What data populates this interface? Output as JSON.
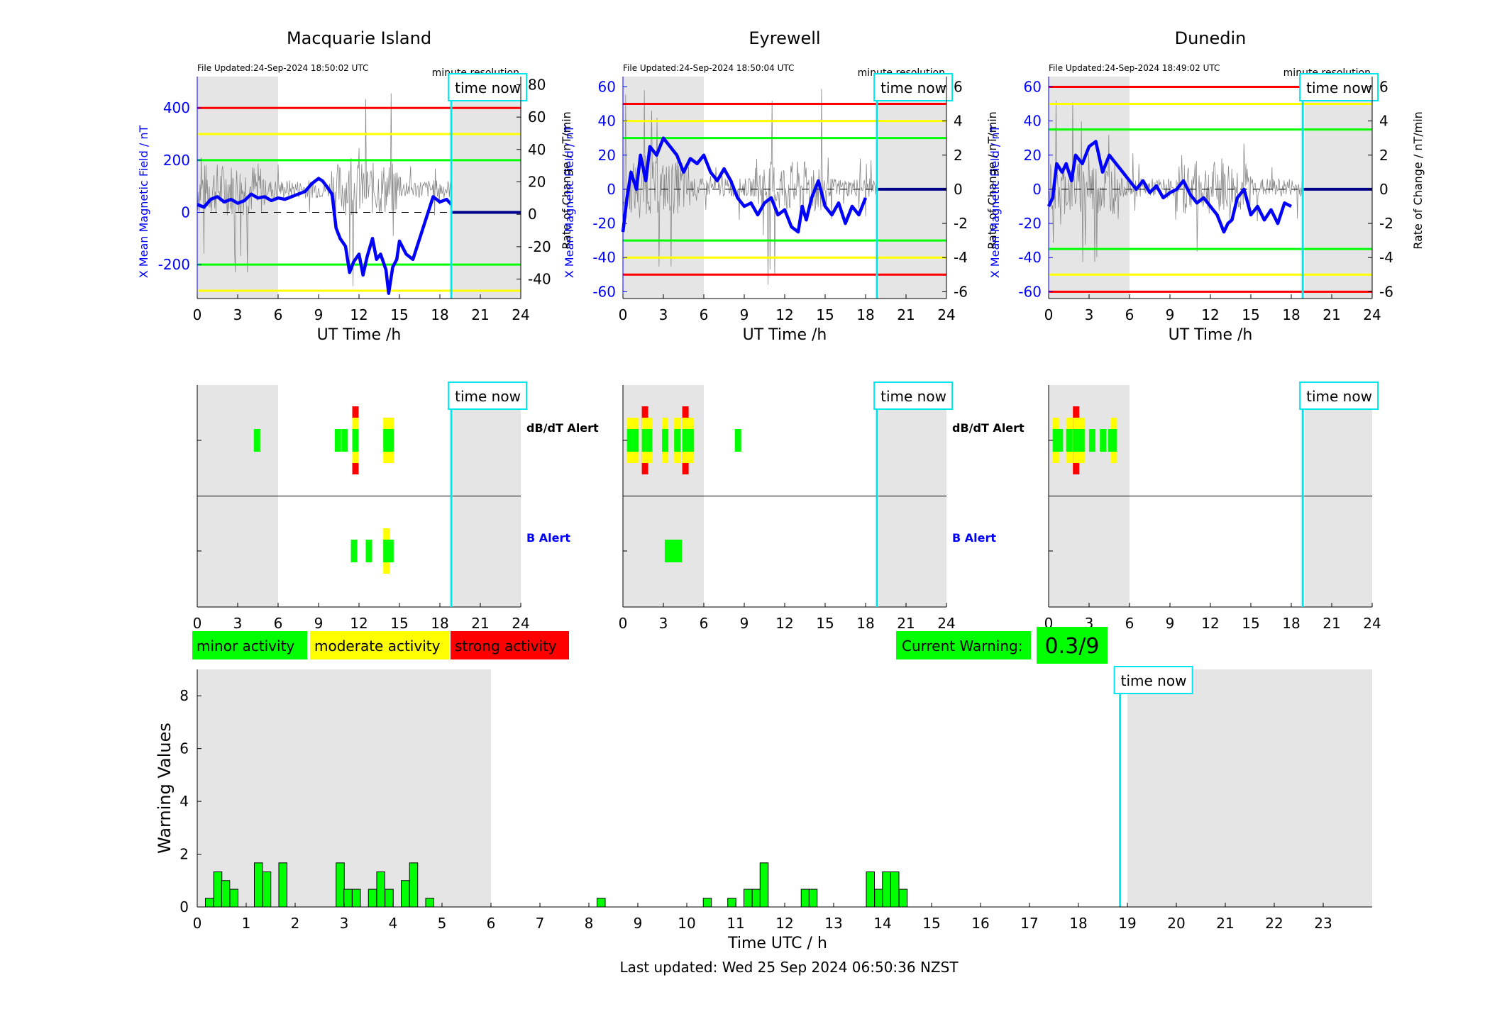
{
  "stations": [
    {
      "name": "Macquarie Island",
      "file_updated": "File Updated:24-Sep-2024 18:50:02 UTC",
      "resolution": "minute resolution",
      "left_ylabel": "X Mean Magnetic Field / nT",
      "right_ylabel": "Rate of Change / nT/min",
      "left_ylim": [
        -330,
        520
      ],
      "left_ticks": [
        -200,
        0,
        200,
        400
      ],
      "right_ticks": [
        -40,
        -20,
        0,
        20,
        40,
        60,
        80
      ],
      "thresholds": [
        {
          "value": 400,
          "color": "#ff0000"
        },
        {
          "value": 300,
          "color": "#ffff00"
        },
        {
          "value": 200,
          "color": "#00ff00"
        },
        {
          "value": -200,
          "color": "#00ff00"
        },
        {
          "value": -300,
          "color": "#ffff00"
        }
      ],
      "series_x": {
        "t": [
          0,
          0.5,
          1,
          1.5,
          2,
          2.5,
          3,
          3.5,
          4,
          4.5,
          5,
          5.5,
          6,
          6.5,
          7,
          7.5,
          8,
          8.5,
          9,
          9.3,
          9.6,
          10,
          10.3,
          10.6,
          11,
          11.3,
          11.6,
          12,
          12.3,
          12.6,
          13,
          13.3,
          13.6,
          14,
          14.2,
          14.5,
          14.8,
          15,
          15.5,
          16,
          16.5,
          17,
          17.5,
          18,
          18.5,
          18.85
        ],
        "v": [
          30,
          20,
          50,
          60,
          40,
          50,
          35,
          45,
          70,
          55,
          60,
          45,
          55,
          50,
          60,
          70,
          80,
          110,
          130,
          120,
          100,
          70,
          -60,
          -100,
          -130,
          -230,
          -190,
          -160,
          -240,
          -170,
          -100,
          -180,
          -160,
          -220,
          -310,
          -210,
          -180,
          -110,
          -160,
          -180,
          -100,
          -20,
          60,
          40,
          50,
          30
        ]
      }
    },
    {
      "name": "Eyrewell",
      "file_updated": "File Updated:24-Sep-2024 18:50:04 UTC",
      "resolution": "minute resolution",
      "left_ylabel": "X Mean Magnetic Field / nT",
      "right_ylabel": "Rate of Change / nT/min",
      "left_ylim": [
        -64,
        66
      ],
      "left_ticks": [
        -60,
        -40,
        -20,
        0,
        20,
        40,
        60
      ],
      "right_ticks": [
        -6,
        -4,
        -2,
        0,
        2,
        4,
        6
      ],
      "thresholds": [
        {
          "value": 50,
          "color": "#ff0000"
        },
        {
          "value": 40,
          "color": "#ffff00"
        },
        {
          "value": 30,
          "color": "#00ff00"
        },
        {
          "value": -30,
          "color": "#00ff00"
        },
        {
          "value": -40,
          "color": "#ffff00"
        },
        {
          "value": -50,
          "color": "#ff0000"
        }
      ],
      "series_x": {
        "t": [
          0,
          0.3,
          0.6,
          1,
          1.3,
          1.7,
          2,
          2.5,
          3,
          3.5,
          4,
          4.5,
          5,
          5.5,
          6,
          6.5,
          7,
          7.5,
          8,
          8.5,
          9,
          9.5,
          10,
          10.5,
          11,
          11.5,
          12,
          12.5,
          13,
          13.3,
          13.6,
          14,
          14.5,
          15,
          15.5,
          16,
          16.5,
          17,
          17.5,
          18
        ],
        "v": [
          -25,
          -5,
          10,
          0,
          20,
          5,
          25,
          20,
          30,
          25,
          20,
          10,
          18,
          15,
          20,
          10,
          5,
          12,
          5,
          -5,
          -10,
          -8,
          -15,
          -8,
          -5,
          -15,
          -12,
          -22,
          -25,
          -10,
          -18,
          -5,
          5,
          -10,
          -15,
          -8,
          -20,
          -10,
          -15,
          -5
        ]
      }
    },
    {
      "name": "Dunedin",
      "file_updated": "File Updated:24-Sep-2024 18:49:02 UTC",
      "resolution": "minute resolution",
      "left_ylabel": "X Mean Magnetic Field / nT",
      "right_ylabel": "Rate of Change / nT/min",
      "left_ylim": [
        -64,
        66
      ],
      "left_ticks": [
        -60,
        -40,
        -20,
        0,
        20,
        40,
        60
      ],
      "right_ticks": [
        -6,
        -4,
        -2,
        0,
        2,
        4,
        6
      ],
      "thresholds": [
        {
          "value": 60,
          "color": "#ff0000"
        },
        {
          "value": 50,
          "color": "#ffff00"
        },
        {
          "value": 35,
          "color": "#00ff00"
        },
        {
          "value": -35,
          "color": "#00ff00"
        },
        {
          "value": -50,
          "color": "#ffff00"
        },
        {
          "value": -60,
          "color": "#ff0000"
        }
      ],
      "series_x": {
        "t": [
          0,
          0.3,
          0.6,
          1,
          1.3,
          1.7,
          2,
          2.5,
          3,
          3.5,
          4,
          4.5,
          5,
          5.5,
          6,
          6.5,
          7,
          7.5,
          8,
          8.5,
          9,
          9.5,
          10,
          10.5,
          11,
          11.5,
          12,
          12.5,
          13,
          13.3,
          13.6,
          14,
          14.5,
          15,
          15.5,
          16,
          16.5,
          17,
          17.5,
          18
        ],
        "v": [
          -10,
          -5,
          15,
          10,
          15,
          5,
          20,
          15,
          25,
          28,
          10,
          20,
          15,
          10,
          5,
          0,
          5,
          -2,
          2,
          -5,
          -2,
          0,
          5,
          -3,
          -8,
          -5,
          -10,
          -15,
          -25,
          -20,
          -18,
          -5,
          0,
          -15,
          -10,
          -18,
          -12,
          -20,
          -8,
          -10
        ]
      }
    }
  ],
  "common": {
    "xlabel": "UT Time /h",
    "xticks": [
      0,
      3,
      6,
      9,
      12,
      15,
      18,
      21,
      24
    ],
    "time_now": 18.85,
    "time_now_label": "time now",
    "shade_ranges": [
      [
        0,
        6
      ],
      [
        19,
        24
      ]
    ],
    "alert_labels": {
      "dbdt": "dB/dT Alert",
      "b": "B Alert"
    },
    "colors": {
      "minor": "#00ff00",
      "moderate": "#ffff00",
      "strong": "#ff0000",
      "time_now": "#00e5ee",
      "shade": "#e5e5e5",
      "series": "#0000ff",
      "label_blue": "#0000ff"
    }
  },
  "alerts": [
    {
      "dbdt": [
        {
          "t": 4.2,
          "level": "minor"
        },
        {
          "t": 10.2,
          "level": "minor"
        },
        {
          "t": 10.7,
          "level": "minor"
        },
        {
          "t": 11.5,
          "level": "strong"
        },
        {
          "t": 13.8,
          "level": "moderate"
        },
        {
          "t": 14.1,
          "level": "moderate"
        }
      ],
      "b": [
        {
          "t": 11.4,
          "level": "minor"
        },
        {
          "t": 12.5,
          "level": "minor"
        },
        {
          "t": 13.8,
          "level": "moderate"
        },
        {
          "t": 14.1,
          "level": "minor"
        }
      ]
    },
    {
      "dbdt": [
        {
          "t": 0.3,
          "level": "moderate"
        },
        {
          "t": 0.7,
          "level": "moderate"
        },
        {
          "t": 1.4,
          "level": "strong"
        },
        {
          "t": 1.7,
          "level": "moderate"
        },
        {
          "t": 2.9,
          "level": "moderate"
        },
        {
          "t": 3.8,
          "level": "moderate"
        },
        {
          "t": 4.4,
          "level": "strong"
        },
        {
          "t": 4.8,
          "level": "moderate"
        },
        {
          "t": 8.3,
          "level": "minor"
        }
      ],
      "b": [
        {
          "t": 3.1,
          "level": "minor"
        },
        {
          "t": 3.5,
          "level": "minor"
        },
        {
          "t": 3.9,
          "level": "minor"
        }
      ]
    },
    {
      "dbdt": [
        {
          "t": 0.3,
          "level": "moderate"
        },
        {
          "t": 0.6,
          "level": "minor"
        },
        {
          "t": 1.3,
          "level": "moderate"
        },
        {
          "t": 1.8,
          "level": "strong"
        },
        {
          "t": 2.2,
          "level": "moderate"
        },
        {
          "t": 3.0,
          "level": "minor"
        },
        {
          "t": 3.8,
          "level": "minor"
        },
        {
          "t": 4.4,
          "level": "minor"
        },
        {
          "t": 4.6,
          "level": "moderate"
        }
      ],
      "b": []
    }
  ],
  "legend": {
    "minor": "minor activity",
    "moderate": "moderate activity",
    "strong": "strong activity"
  },
  "current_warning": {
    "label": "Current Warning:",
    "value": "0.3/9"
  },
  "chart_data": {
    "type": "bar",
    "ylabel": "Warning Values",
    "xlabel": "Time UTC / h",
    "ylim": [
      0,
      9
    ],
    "yticks": [
      0,
      2,
      4,
      6,
      8
    ],
    "xlim": [
      0,
      24
    ],
    "xticks": [
      0,
      1,
      2,
      3,
      4,
      5,
      6,
      7,
      8,
      9,
      10,
      11,
      12,
      13,
      14,
      15,
      16,
      17,
      18,
      19,
      20,
      21,
      22,
      23
    ],
    "time_now": 18.85,
    "time_now_label": "time now",
    "shade_ranges": [
      [
        0,
        6
      ],
      [
        19,
        24
      ]
    ],
    "bar_width": 0.1667,
    "x": [
      0.25,
      0.42,
      0.58,
      0.75,
      1.25,
      1.42,
      1.75,
      2.92,
      3.08,
      3.25,
      3.58,
      3.75,
      3.92,
      4.25,
      4.42,
      4.75,
      8.25,
      10.42,
      10.92,
      11.25,
      11.42,
      11.58,
      12.42,
      12.58,
      13.75,
      13.92,
      14.08,
      14.25,
      14.42
    ],
    "values": [
      0.33,
      1.33,
      1.0,
      0.67,
      1.67,
      1.33,
      1.67,
      1.67,
      0.67,
      0.67,
      0.67,
      1.33,
      0.67,
      1.0,
      1.67,
      0.33,
      0.33,
      0.33,
      0.33,
      0.67,
      0.67,
      1.67,
      0.67,
      0.67,
      1.33,
      0.67,
      1.33,
      1.33,
      0.67
    ]
  },
  "footer": "Last updated: Wed 25 Sep 2024 06:50:36 NZST"
}
